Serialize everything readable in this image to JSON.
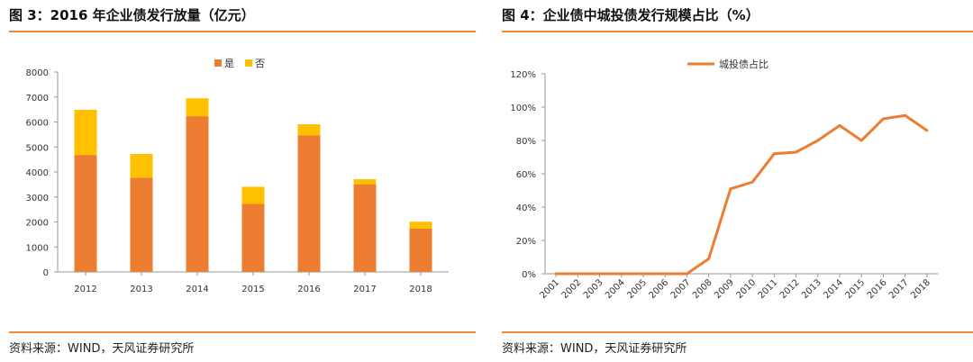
{
  "figures": [
    {
      "title": "图 3：2016 年企业债发行放量（亿元）",
      "source": "资料来源：WIND，天风证券研究所",
      "chart_data": {
        "type": "bar",
        "stacked": true,
        "categories": [
          "2012",
          "2013",
          "2014",
          "2015",
          "2016",
          "2017",
          "2018"
        ],
        "series": [
          {
            "name": "是",
            "color": "#ed7d31",
            "values": [
              4680,
              3770,
              6230,
              2720,
              5460,
              3510,
              1730
            ]
          },
          {
            "name": "否",
            "color": "#ffc000",
            "values": [
              1810,
              950,
              720,
              690,
              450,
              200,
              280
            ]
          }
        ],
        "ylim": [
          0,
          8000
        ],
        "yticks": [
          "0",
          "1000",
          "2000",
          "3000",
          "4000",
          "5000",
          "6000",
          "7000",
          "8000"
        ],
        "grid": false,
        "legend_position": "top-right"
      }
    },
    {
      "title": "图 4：企业债中城投债发行规模占比（%）",
      "source": "资料来源：WIND，天风证券研究所",
      "chart_data": {
        "type": "line",
        "x": [
          "2001",
          "2002",
          "2003",
          "2004",
          "2005",
          "2006",
          "2007",
          "2008",
          "2009",
          "2010",
          "2011",
          "2012",
          "2013",
          "2014",
          "2015",
          "2016",
          "2017",
          "2018"
        ],
        "series": [
          {
            "name": "城投债占比",
            "color": "#ed7d31",
            "values": [
              0,
              0,
              0,
              0,
              0,
              0,
              0,
              9,
              51,
              55,
              72,
              73,
              80,
              89,
              80,
              93,
              95,
              86
            ]
          }
        ],
        "ylim": [
          0,
          120
        ],
        "yticks": [
          "0%",
          "20%",
          "40%",
          "60%",
          "80%",
          "100%",
          "120%"
        ],
        "grid": false,
        "legend_position": "top"
      }
    }
  ]
}
